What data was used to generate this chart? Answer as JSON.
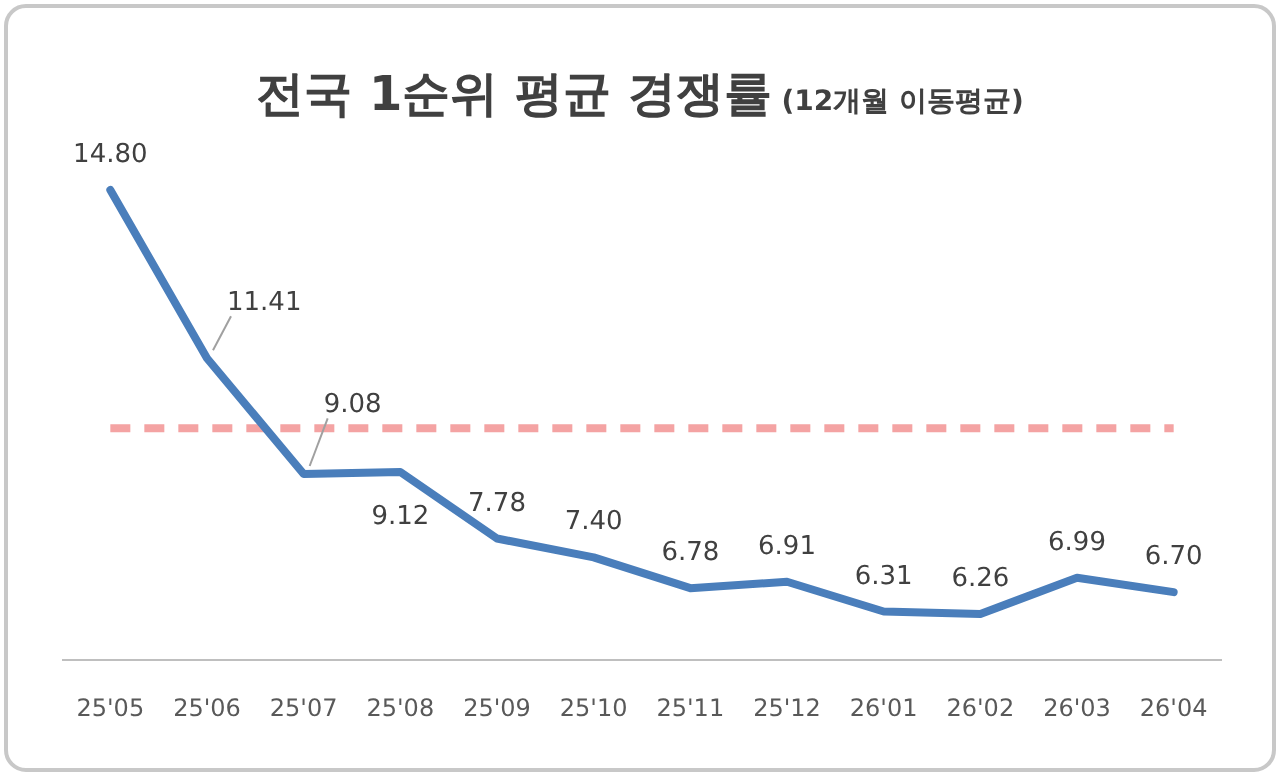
{
  "chart_data": {
    "type": "line",
    "title": "전국 1순위 평균 경쟁률",
    "subtitle": "(12개월 이동평균)",
    "categories": [
      "25'05",
      "25'06",
      "25'07",
      "25'08",
      "25'09",
      "25'10",
      "25'11",
      "25'12",
      "26'01",
      "26'02",
      "26'03",
      "26'04"
    ],
    "series": [
      {
        "color": "#4a7ebb",
        "values": [
          14.8,
          11.41,
          9.08,
          9.12,
          7.78,
          7.4,
          6.78,
          6.91,
          6.31,
          6.26,
          6.99,
          6.7
        ],
        "value_labels": [
          "14.80",
          "11.41",
          "9.08",
          "9.12",
          "7.78",
          "7.40",
          "6.78",
          "6.91",
          "6.31",
          "6.26",
          "6.99",
          "6.70"
        ]
      }
    ],
    "ref_lines": [
      {
        "axis": "y",
        "value": 10,
        "color": "#f4a3a3",
        "line_style": "dashed"
      }
    ],
    "marker": "none",
    "line_style": "solid"
  }
}
